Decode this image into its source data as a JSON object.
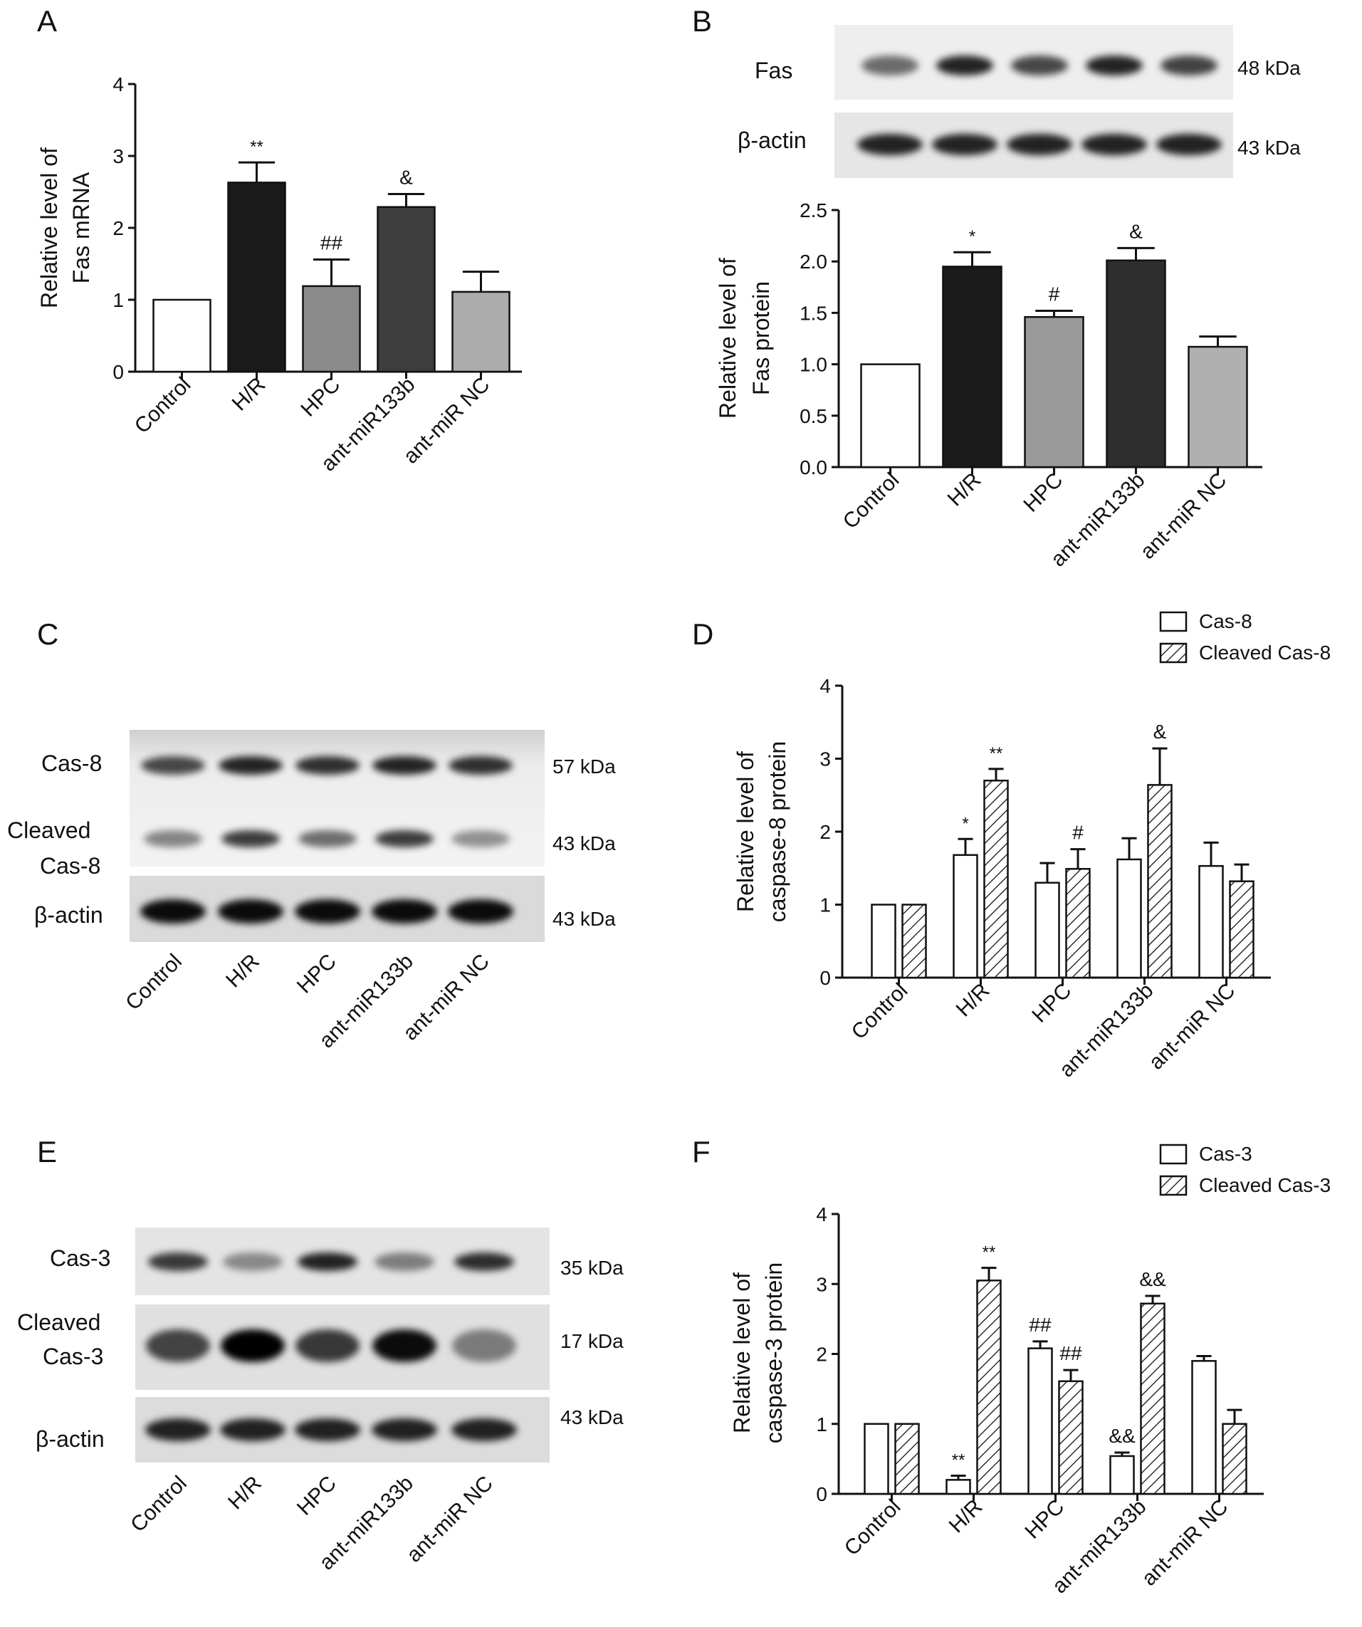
{
  "panels": {
    "A": {
      "letter": "A"
    },
    "B": {
      "letter": "B",
      "blot": {
        "bands": [
          {
            "label": "Fas",
            "kda": "48 kDa"
          },
          {
            "label": "β-actin",
            "kda": "43 kDa"
          }
        ]
      }
    },
    "C": {
      "letter": "C",
      "blot": {
        "bands": [
          {
            "label": "Cas-8",
            "kda": "57 kDa"
          },
          {
            "label_lines": [
              "Cleaved",
              "Cas-8"
            ],
            "kda": "43 kDa"
          },
          {
            "label": "β-actin",
            "kda": "43 kDa"
          }
        ],
        "lanes": [
          "Control",
          "H/R",
          "HPC",
          "ant-miR133b",
          "ant-miR NC"
        ]
      }
    },
    "D": {
      "letter": "D"
    },
    "E": {
      "letter": "E",
      "blot": {
        "bands": [
          {
            "label": "Cas-3",
            "kda": "35 kDa"
          },
          {
            "label_lines": [
              "Cleaved",
              "Cas-3"
            ],
            "kda": "17 kDa"
          },
          {
            "label": "β-actin",
            "kda": "43 kDa"
          }
        ],
        "lanes": [
          "Control",
          "H/R",
          "HPC",
          "ant-miR133b",
          "ant-miR NC"
        ]
      }
    },
    "F": {
      "letter": "F"
    }
  },
  "blot_intensity": {
    "B_fas": [
      0.55,
      0.85,
      0.7,
      0.85,
      0.72
    ],
    "B_actin": [
      0.85,
      0.85,
      0.85,
      0.85,
      0.85
    ],
    "C_cas8": [
      0.7,
      0.85,
      0.8,
      0.85,
      0.8
    ],
    "C_cleaved": [
      0.45,
      0.75,
      0.55,
      0.75,
      0.4
    ],
    "C_actin": [
      0.95,
      0.95,
      0.95,
      0.95,
      0.95
    ],
    "E_cas3": [
      0.75,
      0.4,
      0.85,
      0.45,
      0.8
    ],
    "E_cleaved": [
      0.7,
      1.0,
      0.75,
      0.95,
      0.45
    ],
    "E_actin": [
      0.85,
      0.85,
      0.85,
      0.85,
      0.85
    ]
  },
  "chart_data": [
    {
      "panel": "A",
      "type": "bar",
      "categories": [
        "Control",
        "H/R",
        "HPC",
        "ant-miR133b",
        "ant-miR NC"
      ],
      "ylabel_lines": [
        "Relative level of",
        "Fas mRNA"
      ],
      "ylim": [
        0,
        4
      ],
      "yticks": [
        "0",
        "1",
        "2",
        "3",
        "4"
      ],
      "series": [
        {
          "values": [
            1.0,
            2.63,
            1.19,
            2.29,
            1.11
          ],
          "errors": [
            0,
            0.28,
            0.37,
            0.18,
            0.28
          ],
          "colors": [
            "#ffffff",
            "#1a1a1a",
            "#8a8a8a",
            "#3d3d3d",
            "#ababab"
          ],
          "annotations": [
            "",
            "**",
            "##",
            "&",
            ""
          ]
        }
      ]
    },
    {
      "panel": "B",
      "type": "bar",
      "categories": [
        "Control",
        "H/R",
        "HPC",
        "ant-miR133b",
        "ant-miR NC"
      ],
      "ylabel_lines": [
        "Relative level of",
        "Fas protein"
      ],
      "ylim": [
        0,
        2.5
      ],
      "yticks": [
        "0.0",
        "0.5",
        "1.0",
        "1.5",
        "2.0",
        "2.5"
      ],
      "series": [
        {
          "values": [
            1.0,
            1.95,
            1.46,
            2.01,
            1.17
          ],
          "errors": [
            0,
            0.14,
            0.06,
            0.12,
            0.1
          ],
          "colors": [
            "#ffffff",
            "#1a1a1a",
            "#9a9a9a",
            "#2e2e2e",
            "#b0b0b0"
          ],
          "annotations": [
            "",
            "*",
            "#",
            "&",
            ""
          ]
        }
      ]
    },
    {
      "panel": "D",
      "type": "bar",
      "categories": [
        "Control",
        "H/R",
        "HPC",
        "ant-miR133b",
        "ant-miR NC"
      ],
      "ylabel_lines": [
        "Relative level of",
        "caspase-8 protein"
      ],
      "ylim": [
        0,
        4
      ],
      "yticks": [
        "0",
        "1",
        "2",
        "3",
        "4"
      ],
      "legend": [
        "Cas-8",
        "Cleaved Cas-8"
      ],
      "series": [
        {
          "name": "Cas-8",
          "values": [
            1.0,
            1.68,
            1.3,
            1.62,
            1.53
          ],
          "errors": [
            0,
            0.22,
            0.27,
            0.29,
            0.32
          ],
          "annotations": [
            "",
            "*",
            "",
            "",
            ""
          ]
        },
        {
          "name": "Cleaved Cas-8",
          "values": [
            1.0,
            2.7,
            1.49,
            2.64,
            1.32
          ],
          "errors": [
            0,
            0.16,
            0.27,
            0.5,
            0.23
          ],
          "annotations": [
            "",
            "**",
            "#",
            "&",
            ""
          ]
        }
      ]
    },
    {
      "panel": "F",
      "type": "bar",
      "categories": [
        "Control",
        "H/R",
        "HPC",
        "ant-miR133b",
        "ant-miR NC"
      ],
      "ylabel_lines": [
        "Relative level of",
        "caspase-3 protein"
      ],
      "ylim": [
        0,
        4
      ],
      "yticks": [
        "0",
        "1",
        "2",
        "3",
        "4"
      ],
      "legend": [
        "Cas-3",
        "Cleaved Cas-3"
      ],
      "series": [
        {
          "name": "Cas-3",
          "values": [
            1.0,
            0.2,
            2.08,
            0.54,
            1.9
          ],
          "errors": [
            0,
            0.06,
            0.1,
            0.05,
            0.07
          ],
          "annotations": [
            "",
            "**",
            "##",
            "&&",
            ""
          ]
        },
        {
          "name": "Cleaved Cas-3",
          "values": [
            1.0,
            3.05,
            1.61,
            2.72,
            1.0
          ],
          "errors": [
            0,
            0.18,
            0.16,
            0.11,
            0.2
          ],
          "annotations": [
            "",
            "**",
            "##",
            "&&",
            ""
          ]
        }
      ]
    }
  ]
}
